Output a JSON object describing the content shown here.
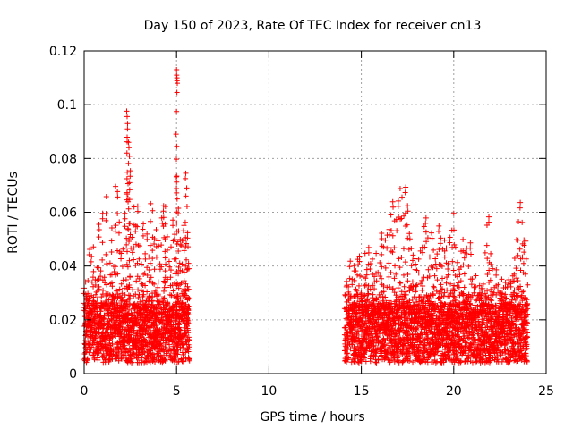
{
  "chart_data": {
    "type": "scatter",
    "title": "Day 150 of 2023, Rate Of TEC Index for receiver cn13",
    "xlabel": "GPS time / hours",
    "ylabel": "ROTI / TECUs",
    "xlim": [
      0,
      25
    ],
    "ylim": [
      0,
      0.12
    ],
    "x_ticks": [
      "0",
      "5",
      "10",
      "15",
      "20",
      "25"
    ],
    "y_ticks": [
      "0",
      "0.02",
      "0.04",
      "0.06",
      "0.08",
      "0.1",
      "0.12"
    ],
    "grid": true,
    "legend": "none",
    "marker": "plus",
    "color": "#ff0000",
    "series": [
      {
        "segments": [
          {
            "x_start": 0.0,
            "x_end": 5.7
          },
          {
            "x_start": 14.1,
            "x_end": 24.0
          }
        ],
        "points": [
          [
            0.0,
            0.0318
          ],
          [
            0.1,
            0.0158
          ],
          [
            0.2,
            0.0298
          ],
          [
            0.3,
            0.0462
          ],
          [
            0.4,
            0.0436
          ],
          [
            0.5,
            0.0471
          ],
          [
            0.6,
            0.0349
          ],
          [
            0.7,
            0.0395
          ],
          [
            0.8,
            0.0555
          ],
          [
            0.9,
            0.0382
          ],
          [
            1.0,
            0.0596
          ],
          [
            1.1,
            0.0358
          ],
          [
            1.2,
            0.0658
          ],
          [
            1.3,
            0.0296
          ],
          [
            1.4,
            0.0411
          ],
          [
            1.5,
            0.0542
          ],
          [
            1.6,
            0.0399
          ],
          [
            1.7,
            0.0696
          ],
          [
            1.8,
            0.0677
          ],
          [
            1.9,
            0.0564
          ],
          [
            2.0,
            0.0447
          ],
          [
            2.1,
            0.0463
          ],
          [
            2.2,
            0.0596
          ],
          [
            2.3,
            0.0976
          ],
          [
            2.35,
            0.093
          ],
          [
            2.4,
            0.086
          ],
          [
            2.45,
            0.0808
          ],
          [
            2.5,
            0.0754
          ],
          [
            2.6,
            0.0507
          ],
          [
            2.7,
            0.062
          ],
          [
            2.8,
            0.0549
          ],
          [
            2.9,
            0.0623
          ],
          [
            3.0,
            0.0475
          ],
          [
            3.1,
            0.0407
          ],
          [
            3.2,
            0.0557
          ],
          [
            3.3,
            0.0446
          ],
          [
            3.4,
            0.0519
          ],
          [
            3.5,
            0.0434
          ],
          [
            3.6,
            0.0632
          ],
          [
            3.7,
            0.0606
          ],
          [
            3.8,
            0.0502
          ],
          [
            3.9,
            0.0535
          ],
          [
            4.0,
            0.0494
          ],
          [
            4.1,
            0.0408
          ],
          [
            4.2,
            0.0579
          ],
          [
            4.3,
            0.0624
          ],
          [
            4.4,
            0.0621
          ],
          [
            4.5,
            0.0509
          ],
          [
            4.6,
            0.0417
          ],
          [
            4.7,
            0.0471
          ],
          [
            4.8,
            0.0571
          ],
          [
            4.9,
            0.0518
          ],
          [
            5.0,
            0.113
          ],
          [
            5.02,
            0.11
          ],
          [
            5.1,
            0.0615
          ],
          [
            5.2,
            0.0499
          ],
          [
            5.3,
            0.0495
          ],
          [
            5.4,
            0.0551
          ],
          [
            5.5,
            0.0745
          ],
          [
            5.55,
            0.069
          ],
          [
            5.6,
            0.0524
          ],
          [
            5.65,
            0.041
          ],
          [
            14.2,
            0.0343
          ],
          [
            14.3,
            0.0323
          ],
          [
            14.4,
            0.0418
          ],
          [
            14.5,
            0.0351
          ],
          [
            14.6,
            0.0402
          ],
          [
            14.7,
            0.0382
          ],
          [
            14.8,
            0.0425
          ],
          [
            14.9,
            0.0437
          ],
          [
            15.0,
            0.0299
          ],
          [
            15.1,
            0.0359
          ],
          [
            15.2,
            0.0447
          ],
          [
            15.3,
            0.0387
          ],
          [
            15.4,
            0.0469
          ],
          [
            15.5,
            0.0409
          ],
          [
            15.6,
            0.0426
          ],
          [
            15.7,
            0.0361
          ],
          [
            15.8,
            0.0447
          ],
          [
            15.9,
            0.0376
          ],
          [
            16.0,
            0.0412
          ],
          [
            16.1,
            0.0522
          ],
          [
            16.2,
            0.0471
          ],
          [
            16.3,
            0.0496
          ],
          [
            16.4,
            0.0515
          ],
          [
            16.5,
            0.0536
          ],
          [
            16.6,
            0.059
          ],
          [
            16.7,
            0.0639
          ],
          [
            16.8,
            0.0568
          ],
          [
            16.9,
            0.0573
          ],
          [
            17.0,
            0.0642
          ],
          [
            17.1,
            0.0688
          ],
          [
            17.2,
            0.0656
          ],
          [
            17.3,
            0.0586
          ],
          [
            17.4,
            0.0693
          ],
          [
            17.5,
            0.0624
          ],
          [
            17.6,
            0.0521
          ],
          [
            17.7,
            0.0465
          ],
          [
            17.8,
            0.0441
          ],
          [
            17.9,
            0.0427
          ],
          [
            18.0,
            0.0384
          ],
          [
            18.1,
            0.0426
          ],
          [
            18.2,
            0.0456
          ],
          [
            18.3,
            0.047
          ],
          [
            18.4,
            0.0547
          ],
          [
            18.5,
            0.0579
          ],
          [
            18.6,
            0.0505
          ],
          [
            18.7,
            0.0434
          ],
          [
            18.8,
            0.0523
          ],
          [
            18.9,
            0.0459
          ],
          [
            19.0,
            0.0427
          ],
          [
            19.1,
            0.0445
          ],
          [
            19.2,
            0.0549
          ],
          [
            19.3,
            0.0504
          ],
          [
            19.4,
            0.0463
          ],
          [
            19.5,
            0.0496
          ],
          [
            19.6,
            0.0467
          ],
          [
            19.7,
            0.0409
          ],
          [
            19.8,
            0.0507
          ],
          [
            19.9,
            0.0533
          ],
          [
            20.0,
            0.0596
          ],
          [
            20.1,
            0.047
          ],
          [
            20.2,
            0.0413
          ],
          [
            20.3,
            0.0388
          ],
          [
            20.4,
            0.0455
          ],
          [
            20.5,
            0.0499
          ],
          [
            20.6,
            0.045
          ],
          [
            20.7,
            0.0466
          ],
          [
            20.8,
            0.0399
          ],
          [
            20.9,
            0.0486
          ],
          [
            21.0,
            0.0352
          ],
          [
            21.1,
            0.032
          ],
          [
            21.2,
            0.0364
          ],
          [
            21.3,
            0.0289
          ],
          [
            21.4,
            0.0327
          ],
          [
            21.5,
            0.0316
          ],
          [
            21.6,
            0.0333
          ],
          [
            21.7,
            0.0449
          ],
          [
            21.8,
            0.0552
          ],
          [
            21.9,
            0.0583
          ],
          [
            22.0,
            0.0446
          ],
          [
            22.1,
            0.039
          ],
          [
            22.2,
            0.032
          ],
          [
            22.3,
            0.0386
          ],
          [
            22.4,
            0.0331
          ],
          [
            22.5,
            0.0281
          ],
          [
            22.6,
            0.0351
          ],
          [
            22.7,
            0.0319
          ],
          [
            22.8,
            0.0339
          ],
          [
            22.9,
            0.0322
          ],
          [
            23.0,
            0.0262
          ],
          [
            23.1,
            0.0343
          ],
          [
            23.2,
            0.0363
          ],
          [
            23.3,
            0.0429
          ],
          [
            23.4,
            0.0498
          ],
          [
            23.5,
            0.0565
          ],
          [
            23.6,
            0.0636
          ],
          [
            23.7,
            0.0562
          ],
          [
            23.8,
            0.0497
          ],
          [
            23.9,
            0.0493
          ],
          [
            24.0,
            0.033
          ]
        ]
      }
    ]
  }
}
